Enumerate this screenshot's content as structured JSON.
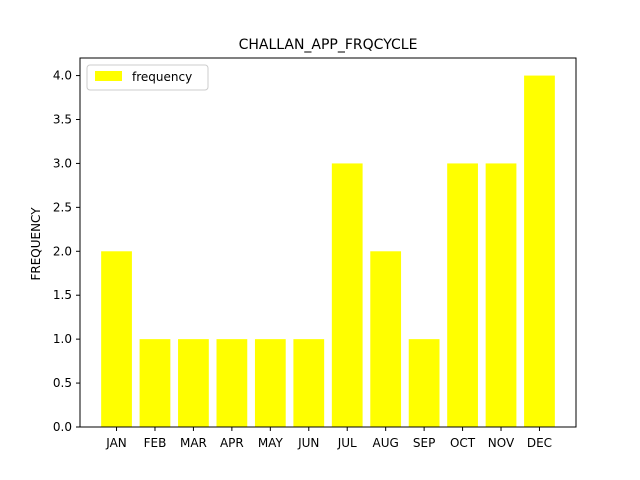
{
  "chart_data": {
    "type": "bar",
    "title": "CHALLAN_APP_FRQCYCLE",
    "xlabel": "",
    "ylabel": "FREQUENCY",
    "categories": [
      "JAN",
      "FEB",
      "MAR",
      "APR",
      "MAY",
      "JUN",
      "JUL",
      "AUG",
      "SEP",
      "OCT",
      "NOV",
      "DEC"
    ],
    "series": [
      {
        "name": "frequency",
        "values": [
          2,
          1,
          1,
          1,
          1,
          1,
          3,
          2,
          1,
          3,
          3,
          4
        ],
        "color": "#ffff00"
      }
    ],
    "ylim": [
      0,
      4.2
    ],
    "yticks": [
      "0.0",
      "0.5",
      "1.0",
      "1.5",
      "2.0",
      "2.5",
      "3.0",
      "3.5",
      "4.0"
    ],
    "grid": false,
    "legend_position": "top-left"
  }
}
